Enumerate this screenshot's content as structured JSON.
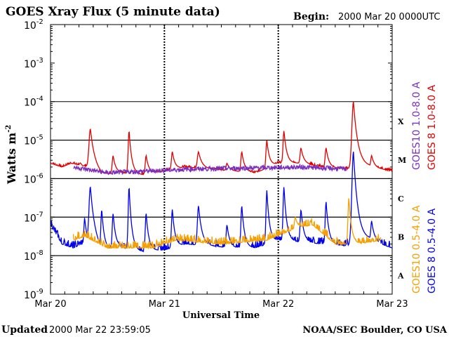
{
  "chart_data": {
    "type": "line",
    "title": "GOES Xray Flux (5 minute data)",
    "begin_label": "Begin:",
    "begin_value": "2000 Mar 20 0000UTC",
    "xlabel": "Universal Time",
    "ylabel": "Watts m",
    "ylabel_sup": "-2",
    "x_unit": "days since 2000 Mar 20 00:00 UT",
    "xlim": [
      0,
      3
    ],
    "ylim_log10": [
      -9,
      -2
    ],
    "x_ticks": [
      {
        "x": 0,
        "label": "Mar 20"
      },
      {
        "x": 1,
        "label": "Mar 21"
      },
      {
        "x": 2,
        "label": "Mar 22"
      },
      {
        "x": 3,
        "label": "Mar 23"
      }
    ],
    "y_ticks": [
      {
        "exp": -2,
        "base": "10",
        "sup": "-2"
      },
      {
        "exp": -3,
        "base": "10",
        "sup": "-3"
      },
      {
        "exp": -4,
        "base": "10",
        "sup": "-4"
      },
      {
        "exp": -5,
        "base": "10",
        "sup": "-5"
      },
      {
        "exp": -6,
        "base": "10",
        "sup": "-6"
      },
      {
        "exp": -7,
        "base": "10",
        "sup": "-7"
      },
      {
        "exp": -8,
        "base": "10",
        "sup": "-8"
      },
      {
        "exp": -9,
        "base": "10",
        "sup": "-9"
      }
    ],
    "flare_classes": [
      {
        "label": "X",
        "exp": -4
      },
      {
        "label": "M",
        "exp": -5
      },
      {
        "label": "C",
        "exp": -6
      },
      {
        "label": "B",
        "exp": -7
      },
      {
        "label": "A",
        "exp": -8
      }
    ],
    "legend": [
      {
        "label": "GOES10 1.0-8.0 A",
        "color": "#7b2fbf"
      },
      {
        "label": "GOES 8 1.0-8.0 A",
        "color": "#e00000"
      },
      {
        "label": "GOES10 0.5-4.0 A",
        "color": "#f5a000"
      },
      {
        "label": "GOES 8 0.5-4.0 A",
        "color": "#0000ee"
      }
    ],
    "series": [
      {
        "name": "GOES 8 1.0-8.0 A",
        "color": "#e00000",
        "background_log10": -5.8,
        "points": [
          [
            0,
            -5.6
          ],
          [
            0.1,
            -5.7
          ],
          [
            0.18,
            -5.6
          ],
          [
            0.35,
            -5.7
          ],
          [
            0.45,
            -5.9
          ],
          [
            0.6,
            -5.85
          ],
          [
            0.8,
            -5.9
          ],
          [
            1.0,
            -5.8
          ],
          [
            1.2,
            -5.7
          ],
          [
            1.4,
            -5.75
          ],
          [
            1.6,
            -5.8
          ],
          [
            1.8,
            -5.85
          ],
          [
            2.0,
            -5.6
          ],
          [
            2.2,
            -5.6
          ],
          [
            2.4,
            -5.7
          ],
          [
            2.6,
            -5.75
          ],
          [
            2.8,
            -5.7
          ],
          [
            3.0,
            -5.8
          ]
        ],
        "flares": [
          {
            "x": 0.35,
            "peak_log10": -4.7,
            "width": 0.03
          },
          {
            "x": 0.55,
            "peak_log10": -5.4,
            "width": 0.02
          },
          {
            "x": 0.69,
            "peak_log10": -4.75,
            "width": 0.02
          },
          {
            "x": 0.84,
            "peak_log10": -5.4,
            "width": 0.02
          },
          {
            "x": 1.07,
            "peak_log10": -5.3,
            "width": 0.02
          },
          {
            "x": 1.3,
            "peak_log10": -5.3,
            "width": 0.025
          },
          {
            "x": 1.55,
            "peak_log10": -5.6,
            "width": 0.02
          },
          {
            "x": 1.68,
            "peak_log10": -5.3,
            "width": 0.02
          },
          {
            "x": 1.9,
            "peak_log10": -5.0,
            "width": 0.02
          },
          {
            "x": 2.05,
            "peak_log10": -4.75,
            "width": 0.02
          },
          {
            "x": 2.2,
            "peak_log10": -5.2,
            "width": 0.02
          },
          {
            "x": 2.42,
            "peak_log10": -5.2,
            "width": 0.02
          },
          {
            "x": 2.66,
            "peak_log10": -4.0,
            "width": 0.035
          },
          {
            "x": 2.82,
            "peak_log10": -5.4,
            "width": 0.02
          }
        ]
      },
      {
        "name": "GOES 8 0.5-4.0 A",
        "color": "#0000ee",
        "background_log10": -7.7,
        "points": [
          [
            0,
            -7.2
          ],
          [
            0.1,
            -7.7
          ],
          [
            0.2,
            -7.8
          ],
          [
            0.35,
            -7.6
          ],
          [
            0.45,
            -7.9
          ],
          [
            0.6,
            -7.8
          ],
          [
            0.8,
            -7.9
          ],
          [
            1.0,
            -7.85
          ],
          [
            1.2,
            -7.7
          ],
          [
            1.4,
            -7.75
          ],
          [
            1.6,
            -7.8
          ],
          [
            1.8,
            -7.8
          ],
          [
            2.0,
            -7.6
          ],
          [
            2.2,
            -7.65
          ],
          [
            2.4,
            -7.7
          ],
          [
            2.6,
            -7.75
          ],
          [
            2.8,
            -7.6
          ],
          [
            3.0,
            -7.8
          ]
        ],
        "flares": [
          {
            "x": 0.3,
            "peak_log10": -7.0,
            "width": 0.015
          },
          {
            "x": 0.35,
            "peak_log10": -6.2,
            "width": 0.03
          },
          {
            "x": 0.45,
            "peak_log10": -6.8,
            "width": 0.02
          },
          {
            "x": 0.55,
            "peak_log10": -6.9,
            "width": 0.02
          },
          {
            "x": 0.69,
            "peak_log10": -6.2,
            "width": 0.02
          },
          {
            "x": 0.84,
            "peak_log10": -6.9,
            "width": 0.02
          },
          {
            "x": 1.07,
            "peak_log10": -6.8,
            "width": 0.02
          },
          {
            "x": 1.3,
            "peak_log10": -6.7,
            "width": 0.025
          },
          {
            "x": 1.55,
            "peak_log10": -7.2,
            "width": 0.02
          },
          {
            "x": 1.68,
            "peak_log10": -6.7,
            "width": 0.02
          },
          {
            "x": 1.9,
            "peak_log10": -6.3,
            "width": 0.02
          },
          {
            "x": 2.05,
            "peak_log10": -6.2,
            "width": 0.02
          },
          {
            "x": 2.2,
            "peak_log10": -6.8,
            "width": 0.02
          },
          {
            "x": 2.42,
            "peak_log10": -6.6,
            "width": 0.02
          },
          {
            "x": 2.66,
            "peak_log10": -5.3,
            "width": 0.035
          },
          {
            "x": 2.82,
            "peak_log10": -7.1,
            "width": 0.02
          }
        ]
      },
      {
        "name": "GOES10 0.5-4.0 A",
        "color": "#f5a000",
        "background_log10": -7.75,
        "points": [
          [
            0.2,
            -7.6
          ],
          [
            0.3,
            -7.5
          ],
          [
            0.5,
            -7.8
          ],
          [
            0.9,
            -7.8
          ],
          [
            1.1,
            -7.6
          ],
          [
            1.5,
            -7.7
          ],
          [
            1.9,
            -7.6
          ],
          [
            2.15,
            -7.3
          ],
          [
            2.3,
            -7.2
          ],
          [
            2.5,
            -7.7
          ],
          [
            2.7,
            -7.7
          ],
          [
            2.9,
            -7.6
          ]
        ],
        "flares": [
          {
            "x": 2.15,
            "peak_log10": -7.0,
            "width": 0.02
          },
          {
            "x": 2.62,
            "peak_log10": -6.5,
            "width": 0.02
          }
        ]
      },
      {
        "name": "GOES10 1.0-8.0 A",
        "color": "#7b2fbf",
        "background_log10": -5.85,
        "points": [
          [
            0.2,
            -5.7
          ],
          [
            0.5,
            -5.85
          ],
          [
            1.25,
            -5.75
          ],
          [
            2.2,
            -5.7
          ],
          [
            2.6,
            -5.75
          ]
        ],
        "flares": []
      }
    ],
    "footer_left_label": "Updated",
    "footer_left_value": "2000 Mar 22 23:59:05",
    "footer_right": "NOAA/SEC Boulder, CO USA"
  }
}
